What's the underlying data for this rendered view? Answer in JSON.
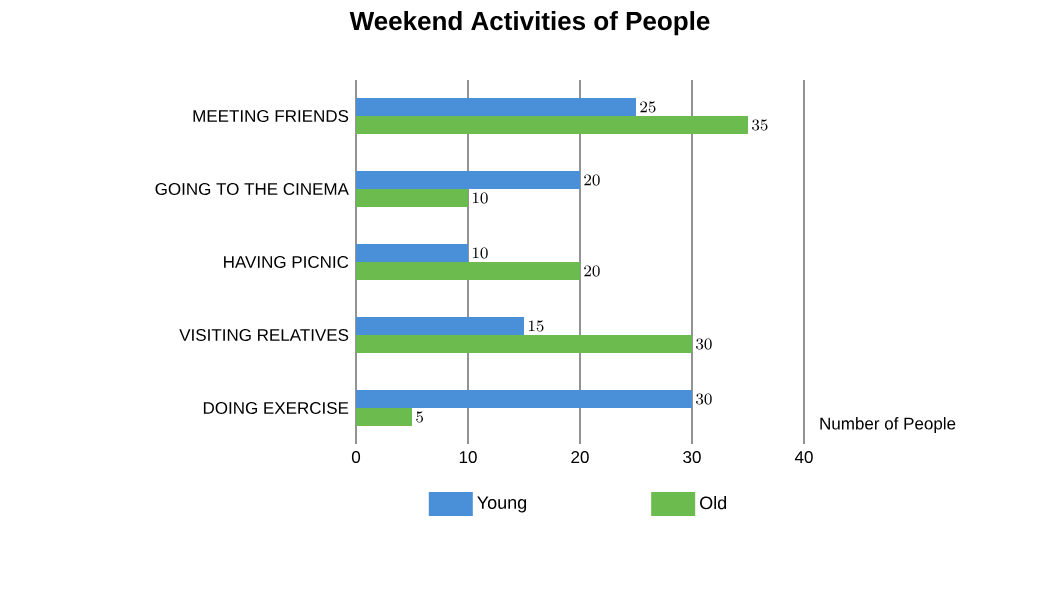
{
  "chart_data": {
    "type": "bar",
    "orientation": "horizontal",
    "title": "Weekend Activities of  People",
    "xlabel": "Number of People",
    "categories": [
      "MEETING FRIENDS",
      "GOING TO THE CINEMA",
      "HAVING PICNIC",
      "VISITING RELATIVES",
      "DOING EXERCISE"
    ],
    "series": [
      {
        "name": "Young",
        "color": "#4a90d9",
        "values": [
          25,
          20,
          10,
          15,
          30
        ]
      },
      {
        "name": "Old",
        "color": "#6cbb4f",
        "values": [
          35,
          10,
          20,
          30,
          5
        ]
      }
    ],
    "xlim": [
      0,
      40
    ],
    "xticks": [
      0,
      10,
      20,
      30,
      40
    ],
    "grid": "x",
    "legend": "bottom",
    "data_labels": true
  }
}
